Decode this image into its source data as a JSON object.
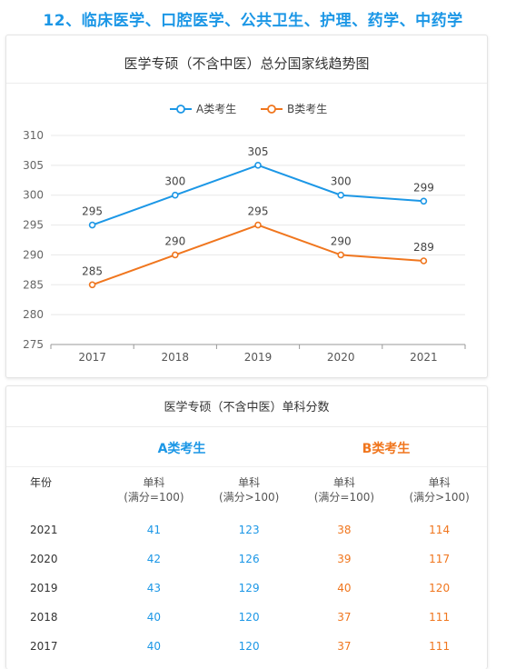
{
  "heading": "12、临床医学、口腔医学、公共卫生、护理、药学、中药学",
  "chart_title": "医学专硕（不含中医）总分国家线趋势图",
  "chart_data": {
    "type": "line",
    "title": "医学专硕（不含中医）总分国家线趋势图",
    "categories": [
      "2017",
      "2018",
      "2019",
      "2020",
      "2021"
    ],
    "series": [
      {
        "name": "A类考生",
        "values": [
          295,
          300,
          305,
          300,
          299
        ],
        "color": "#1c97e6"
      },
      {
        "name": "B类考生",
        "values": [
          285,
          290,
          295,
          290,
          289
        ],
        "color": "#f0761e"
      }
    ],
    "ylim": [
      275,
      310
    ],
    "yticks": [
      275,
      280,
      285,
      290,
      295,
      300,
      305,
      310
    ],
    "legend": "top-center",
    "grid": true
  },
  "table": {
    "title": "医学专硕（不含中医）单科分数",
    "group_a": "A类考生",
    "group_b": "B类考生",
    "headers": [
      {
        "label": "年份",
        "sub": ""
      },
      {
        "label": "单科",
        "sub": "(满分=100)"
      },
      {
        "label": "单科",
        "sub": "(满分>100)"
      },
      {
        "label": "单科",
        "sub": "(满分=100)"
      },
      {
        "label": "单科",
        "sub": "(满分>100)"
      }
    ],
    "rows": [
      {
        "year": "2021",
        "a100": "41",
        "aover": "123",
        "b100": "38",
        "bover": "114"
      },
      {
        "year": "2020",
        "a100": "42",
        "aover": "126",
        "b100": "39",
        "bover": "117"
      },
      {
        "year": "2019",
        "a100": "43",
        "aover": "129",
        "b100": "40",
        "bover": "120"
      },
      {
        "year": "2018",
        "a100": "40",
        "aover": "120",
        "b100": "37",
        "bover": "111"
      },
      {
        "year": "2017",
        "a100": "40",
        "aover": "120",
        "b100": "37",
        "bover": "111"
      }
    ]
  }
}
